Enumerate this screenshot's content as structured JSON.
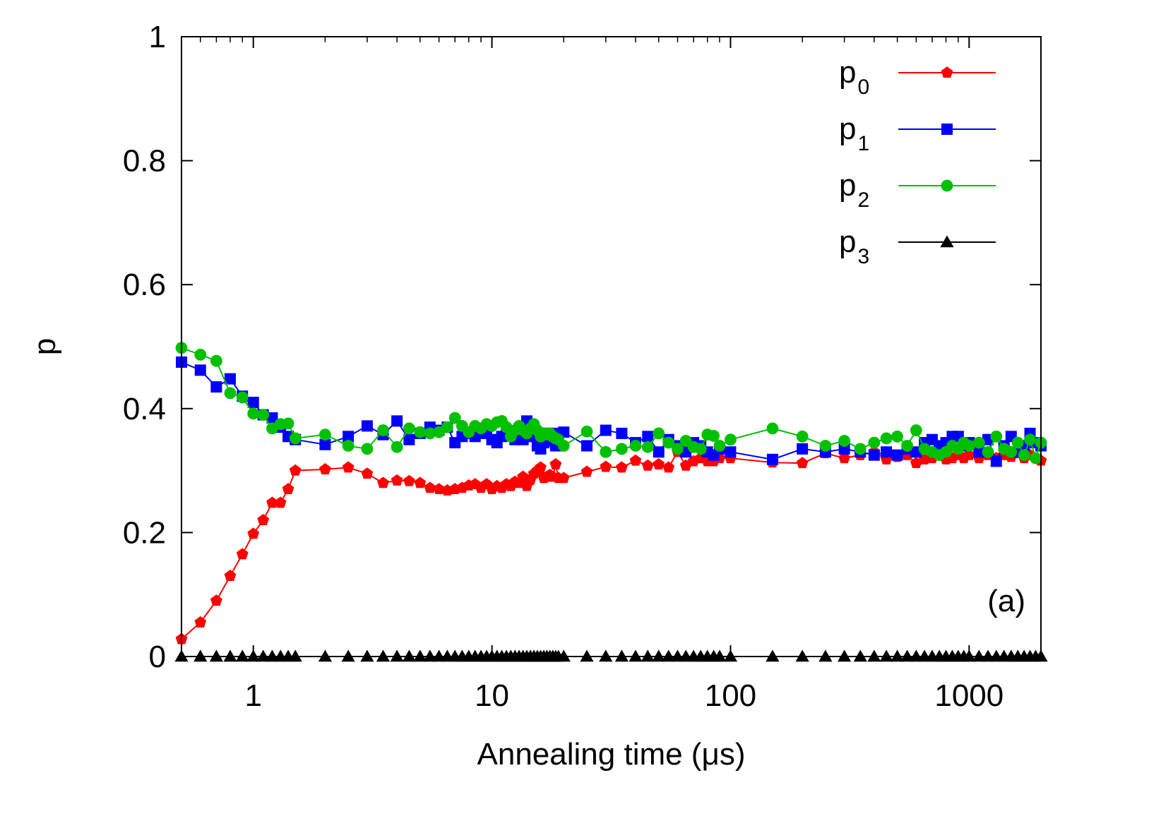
{
  "chart_data": {
    "type": "line",
    "xscale": "log",
    "xlim": [
      0.5,
      2000
    ],
    "ylim": [
      0,
      1
    ],
    "xlabel": "Annealing time (μs)",
    "ylabel": "p",
    "x_ticks": [
      {
        "value": 1,
        "label": "1"
      },
      {
        "value": 10,
        "label": "10"
      },
      {
        "value": 100,
        "label": "100"
      },
      {
        "value": 1000,
        "label": "1000"
      }
    ],
    "y_ticks": [
      {
        "value": 0,
        "label": "0"
      },
      {
        "value": 0.2,
        "label": "0.2"
      },
      {
        "value": 0.4,
        "label": "0.4"
      },
      {
        "value": 0.6,
        "label": "0.6"
      },
      {
        "value": 0.8,
        "label": "0.8"
      },
      {
        "value": 1,
        "label": "1"
      }
    ],
    "annotation": "(a)",
    "legend_position": "top-right",
    "x": [
      0.5,
      0.6,
      0.7,
      0.8,
      0.9,
      1.0,
      1.1,
      1.2,
      1.3,
      1.4,
      1.5,
      2,
      2.5,
      3,
      3.5,
      4,
      4.5,
      5,
      5.5,
      6,
      6.5,
      7,
      7.5,
      8,
      8.5,
      9,
      9.5,
      10,
      10.5,
      11,
      11.5,
      12,
      12.5,
      13,
      13.5,
      14,
      14.5,
      15,
      15.5,
      16,
      16.5,
      17,
      17.5,
      18,
      18.5,
      19,
      20,
      25,
      30,
      35,
      40,
      45,
      50,
      55,
      60,
      65,
      70,
      75,
      80,
      85,
      90,
      100,
      150,
      200,
      250,
      300,
      350,
      400,
      450,
      500,
      550,
      600,
      650,
      700,
      750,
      800,
      850,
      900,
      950,
      1000,
      1100,
      1200,
      1300,
      1400,
      1500,
      1600,
      1700,
      1800,
      1900,
      2000
    ],
    "series": [
      {
        "name": "p",
        "subscript": "0",
        "color": "#ff0000",
        "marker": "pentagon",
        "values": [
          0.028,
          0.055,
          0.09,
          0.13,
          0.165,
          0.198,
          0.22,
          0.248,
          0.248,
          0.27,
          0.3,
          0.302,
          0.305,
          0.295,
          0.28,
          0.284,
          0.283,
          0.28,
          0.272,
          0.27,
          0.268,
          0.27,
          0.272,
          0.276,
          0.278,
          0.272,
          0.278,
          0.27,
          0.275,
          0.272,
          0.278,
          0.275,
          0.282,
          0.28,
          0.29,
          0.275,
          0.285,
          0.295,
          0.3,
          0.305,
          0.288,
          0.29,
          0.293,
          0.29,
          0.31,
          0.288,
          0.288,
          0.298,
          0.306,
          0.305,
          0.316,
          0.308,
          0.31,
          0.305,
          0.33,
          0.308,
          0.315,
          0.32,
          0.315,
          0.315,
          0.32,
          0.32,
          0.313,
          0.312,
          0.328,
          0.32,
          0.325,
          0.33,
          0.318,
          0.322,
          0.325,
          0.312,
          0.318,
          0.32,
          0.325,
          0.318,
          0.32,
          0.325,
          0.32,
          0.325,
          0.32,
          0.325,
          0.32,
          0.325,
          0.322,
          0.328,
          0.32,
          0.325,
          0.32,
          0.316
        ]
      },
      {
        "name": "p",
        "subscript": "1",
        "color": "#0000ff",
        "marker": "square",
        "values": [
          0.475,
          0.462,
          0.435,
          0.448,
          0.42,
          0.41,
          0.39,
          0.385,
          0.37,
          0.355,
          0.35,
          0.342,
          0.355,
          0.372,
          0.358,
          0.38,
          0.35,
          0.36,
          0.37,
          0.365,
          0.37,
          0.345,
          0.355,
          0.36,
          0.355,
          0.36,
          0.362,
          0.35,
          0.345,
          0.355,
          0.365,
          0.36,
          0.35,
          0.358,
          0.35,
          0.38,
          0.355,
          0.36,
          0.34,
          0.335,
          0.345,
          0.36,
          0.348,
          0.36,
          0.34,
          0.355,
          0.362,
          0.34,
          0.365,
          0.36,
          0.345,
          0.355,
          0.33,
          0.35,
          0.34,
          0.33,
          0.345,
          0.34,
          0.33,
          0.325,
          0.335,
          0.33,
          0.318,
          0.335,
          0.33,
          0.335,
          0.33,
          0.325,
          0.33,
          0.325,
          0.335,
          0.33,
          0.345,
          0.35,
          0.34,
          0.345,
          0.355,
          0.355,
          0.34,
          0.345,
          0.33,
          0.35,
          0.315,
          0.34,
          0.355,
          0.33,
          0.34,
          0.36,
          0.345,
          0.34
        ]
      },
      {
        "name": "p",
        "subscript": "2",
        "color": "#00c000",
        "marker": "circle",
        "values": [
          0.498,
          0.487,
          0.477,
          0.425,
          0.418,
          0.392,
          0.39,
          0.368,
          0.375,
          0.376,
          0.352,
          0.358,
          0.34,
          0.335,
          0.365,
          0.338,
          0.368,
          0.362,
          0.36,
          0.362,
          0.37,
          0.385,
          0.372,
          0.362,
          0.372,
          0.368,
          0.375,
          0.372,
          0.378,
          0.38,
          0.37,
          0.355,
          0.365,
          0.372,
          0.365,
          0.36,
          0.368,
          0.375,
          0.365,
          0.355,
          0.36,
          0.358,
          0.36,
          0.355,
          0.352,
          0.35,
          0.34,
          0.363,
          0.33,
          0.335,
          0.34,
          0.338,
          0.36,
          0.345,
          0.335,
          0.348,
          0.338,
          0.335,
          0.358,
          0.356,
          0.34,
          0.35,
          0.368,
          0.355,
          0.34,
          0.348,
          0.335,
          0.345,
          0.352,
          0.355,
          0.34,
          0.365,
          0.335,
          0.33,
          0.325,
          0.33,
          0.34,
          0.335,
          0.345,
          0.34,
          0.345,
          0.33,
          0.355,
          0.335,
          0.33,
          0.345,
          0.325,
          0.35,
          0.32,
          0.345
        ]
      },
      {
        "name": "p",
        "subscript": "3",
        "color": "#000000",
        "marker": "triangle",
        "values": [
          0,
          0,
          0,
          0,
          0,
          0,
          0,
          0,
          0,
          0,
          0,
          0,
          0,
          0,
          0,
          0,
          0,
          0,
          0,
          0,
          0,
          0,
          0,
          0,
          0,
          0,
          0,
          0,
          0,
          0,
          0,
          0,
          0,
          0,
          0,
          0,
          0,
          0,
          0,
          0,
          0,
          0,
          0,
          0,
          0,
          0,
          0,
          0,
          0,
          0,
          0,
          0,
          0,
          0,
          0,
          0,
          0,
          0,
          0,
          0,
          0,
          0,
          0,
          0,
          0,
          0,
          0,
          0,
          0,
          0,
          0,
          0,
          0,
          0,
          0,
          0,
          0,
          0,
          0,
          0,
          0,
          0,
          0,
          0,
          0,
          0,
          0,
          0,
          0,
          0
        ]
      }
    ]
  }
}
